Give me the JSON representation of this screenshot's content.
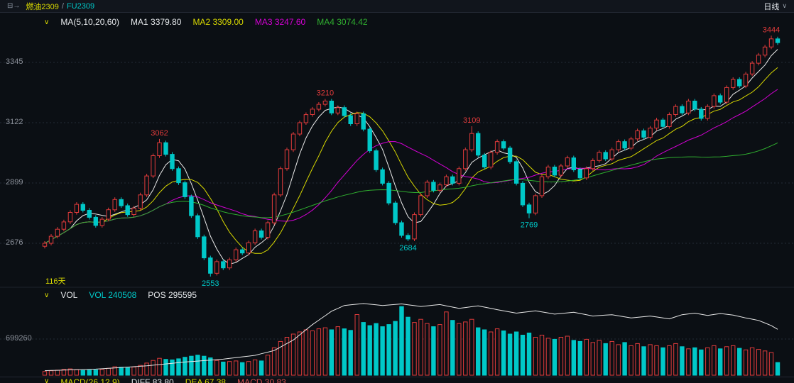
{
  "topbar": {
    "instrument": "燃油2309",
    "separator": "/",
    "code": "FU2309",
    "period": "日线",
    "period_arrow": "∨",
    "icon": "⊟→"
  },
  "main_header": {
    "chevron": "∨",
    "ma_group": "MA(5,10,20,60)",
    "ma1": "MA1 3379.80",
    "ma2": "MA2 3309.00",
    "ma3": "MA3 3247.60",
    "ma4": "MA4 3074.42"
  },
  "vol_header": {
    "chevron": "∨",
    "name": "VOL",
    "vol": "VOL 240508",
    "pos": "POS 295595"
  },
  "macd_header": {
    "chevron": "∨",
    "name": "MACD(26,12,9)",
    "diff": "DIFF 83.80",
    "dea": "DEA 67.38",
    "macd": "MACD 30.83"
  },
  "labels": {
    "days": "116天"
  },
  "colors": {
    "bg": "#0b0f14",
    "up": "#e23b3b",
    "down": "#00c8c8",
    "ma": [
      "#e8e8e8",
      "#d8d800",
      "#d400d4",
      "#2fae2f"
    ],
    "pos_line": "#e8e8e8",
    "grid": "#232b36",
    "axis_text": "#8a8f98",
    "yellow": "#d8d800"
  },
  "chart_data": {
    "type": "candlestick",
    "title": "燃油2309 / FU2309 日线",
    "days": 116,
    "y_ticks": [
      3345,
      3122,
      2899,
      2676
    ],
    "vol_tick": 699260,
    "ma_periods": [
      5,
      10,
      20,
      60
    ],
    "ma_values": [
      3379.8,
      3309.0,
      3247.6,
      3074.42
    ],
    "macd": {
      "diff": 83.8,
      "dea": 67.38,
      "macd": 30.83
    },
    "vol_current": 240508,
    "pos_current": 295595,
    "first_open": 2665,
    "closes": [
      2676,
      2702,
      2728,
      2755,
      2790,
      2820,
      2798,
      2772,
      2742,
      2765,
      2800,
      2838,
      2815,
      2782,
      2806,
      2855,
      2925,
      3000,
      3048,
      3005,
      2952,
      2900,
      2848,
      2778,
      2700,
      2622,
      2565,
      2608,
      2585,
      2615,
      2652,
      2640,
      2678,
      2722,
      2698,
      2752,
      2855,
      2952,
      3022,
      3080,
      3122,
      3152,
      3172,
      3190,
      3202,
      3158,
      3178,
      3148,
      3118,
      3155,
      3098,
      3018,
      2948,
      2898,
      2825,
      2752,
      2705,
      2692,
      2782,
      2852,
      2902,
      2872,
      2892,
      2922,
      2898,
      2952,
      3022,
      3082,
      3002,
      2958,
      3012,
      3052,
      3028,
      2978,
      2898,
      2818,
      2788,
      2852,
      2922,
      2958,
      2928,
      2962,
      2992,
      2948,
      2918,
      2952,
      2982,
      3012,
      2988,
      3022,
      3052,
      3028,
      3062,
      3092,
      3068,
      3102,
      3132,
      3108,
      3152,
      3182,
      3158,
      3202,
      3172,
      3138,
      3182,
      3222,
      3198,
      3252,
      3282,
      3258,
      3302,
      3342,
      3372,
      3402,
      3432,
      3418
    ],
    "volumes": [
      70000,
      85000,
      95000,
      110000,
      120000,
      105000,
      90000,
      95000,
      100000,
      110000,
      130000,
      160000,
      150000,
      140000,
      155000,
      185000,
      230000,
      280000,
      320000,
      300000,
      290000,
      310000,
      340000,
      360000,
      380000,
      360000,
      330000,
      280000,
      250000,
      260000,
      270000,
      240000,
      260000,
      290000,
      270000,
      380000,
      520000,
      640000,
      720000,
      780000,
      820000,
      860000,
      840000,
      880000,
      900000,
      860000,
      920000,
      880000,
      850000,
      1150000,
      1000000,
      940000,
      980000,
      920000,
      960000,
      1020000,
      1300000,
      1100000,
      1000000,
      1060000,
      980000,
      920000,
      960000,
      1200000,
      1040000,
      980000,
      1010000,
      1060000,
      900000,
      860000,
      820000,
      880000,
      840000,
      780000,
      820000,
      760000,
      800000,
      720000,
      760000,
      700000,
      680000,
      720000,
      740000,
      660000,
      640000,
      680000,
      620000,
      660000,
      600000,
      640000,
      580000,
      620000,
      560000,
      600000,
      540000,
      580000,
      560000,
      520000,
      560000,
      600000,
      540000,
      500000,
      520000,
      480000,
      520000,
      560000,
      500000,
      540000,
      560000,
      510000,
      480000,
      520000,
      490000,
      460000,
      430000,
      240508
    ],
    "extremes": [
      {
        "index": 18,
        "high": 3062
      },
      {
        "index": 26,
        "low": 2553
      },
      {
        "index": 44,
        "high": 3210
      },
      {
        "index": 57,
        "low": 2684
      },
      {
        "index": 67,
        "high": 3109
      },
      {
        "index": 76,
        "low": 2769
      },
      {
        "index": 114,
        "high": 3444
      }
    ],
    "annotations": [
      {
        "index": 18,
        "text": "3062",
        "color": "red",
        "side": "above"
      },
      {
        "index": 26,
        "text": "2553",
        "color": "cyan",
        "side": "below"
      },
      {
        "index": 44,
        "text": "3210",
        "color": "red",
        "side": "above"
      },
      {
        "index": 57,
        "text": "2684",
        "color": "cyan",
        "side": "below"
      },
      {
        "index": 67,
        "text": "3109",
        "color": "red",
        "side": "above"
      },
      {
        "index": 76,
        "text": "2769",
        "color": "cyan",
        "side": "below"
      },
      {
        "index": 114,
        "text": "3444",
        "color": "red",
        "side": "above"
      }
    ],
    "pos_points": [
      [
        0,
        80000
      ],
      [
        8,
        88000
      ],
      [
        16,
        105000
      ],
      [
        22,
        125000
      ],
      [
        28,
        140000
      ],
      [
        33,
        160000
      ],
      [
        36,
        185000
      ],
      [
        39,
        240000
      ],
      [
        42,
        320000
      ],
      [
        45,
        390000
      ],
      [
        47,
        420000
      ],
      [
        50,
        430000
      ],
      [
        53,
        420000
      ],
      [
        56,
        428000
      ],
      [
        59,
        415000
      ],
      [
        62,
        425000
      ],
      [
        65,
        405000
      ],
      [
        68,
        418000
      ],
      [
        71,
        398000
      ],
      [
        74,
        380000
      ],
      [
        77,
        392000
      ],
      [
        80,
        375000
      ],
      [
        83,
        385000
      ],
      [
        86,
        365000
      ],
      [
        89,
        372000
      ],
      [
        92,
        355000
      ],
      [
        95,
        365000
      ],
      [
        98,
        350000
      ],
      [
        100,
        372000
      ],
      [
        102,
        380000
      ],
      [
        104,
        368000
      ],
      [
        106,
        378000
      ],
      [
        108,
        370000
      ],
      [
        110,
        355000
      ],
      [
        112,
        342000
      ],
      [
        114,
        315000
      ],
      [
        115,
        295595
      ]
    ]
  }
}
